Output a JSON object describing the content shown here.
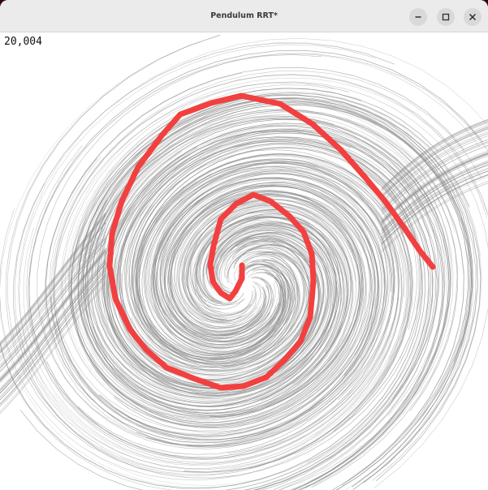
{
  "window": {
    "title": "Pendulum RRT*"
  },
  "controls": {
    "minimize_icon": "minimize-icon",
    "maximize_icon": "maximize-icon",
    "close_icon": "close-icon"
  },
  "overlay": {
    "node_count": "20,004"
  },
  "colors": {
    "tree": "#8c8c8c",
    "path": "#f24040",
    "background": "#ffffff"
  }
}
